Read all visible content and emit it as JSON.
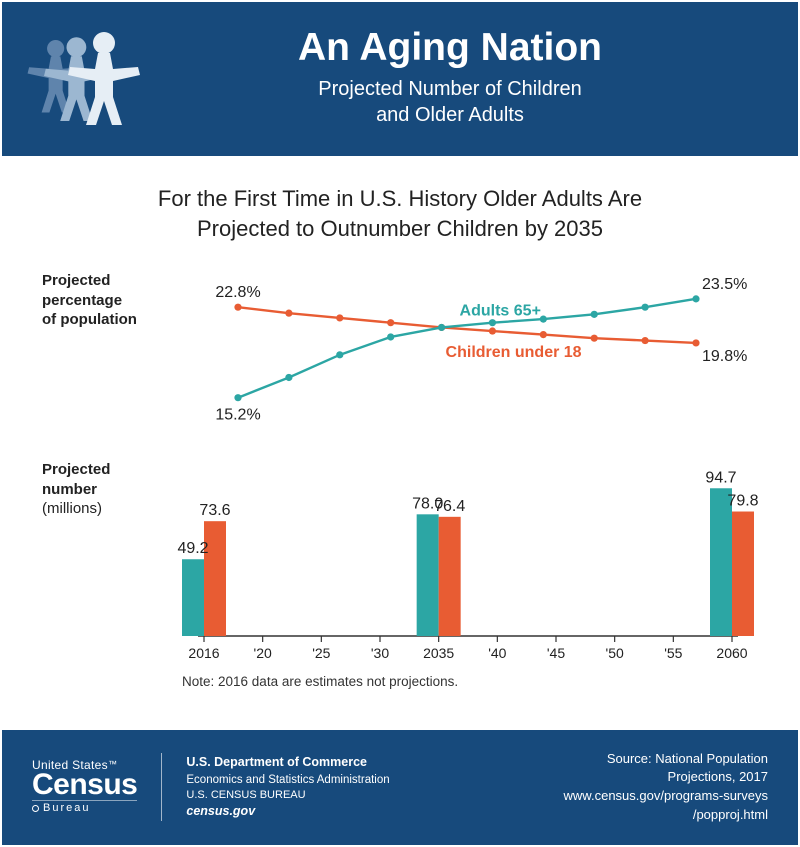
{
  "header": {
    "title": "An Aging Nation",
    "subtitle": "Projected Number of Children\nand Older Adults",
    "bg_color": "#174a7c",
    "icon_colors": {
      "front": "#e6eef5",
      "mid": "#9cb7d1",
      "back": "#5f84ac"
    }
  },
  "content": {
    "headline": "For the First Time in U.S. History Older Adults Are\nProjected to Outnumber Children by 2035",
    "bg_color": "#ffffff",
    "line_chart": {
      "type": "line",
      "side_label_line1": "Projected",
      "side_label_line2": "percentage",
      "side_label_line3": "of population",
      "series": {
        "adults": {
          "label": "Adults 65+",
          "color": "#2ca6a4",
          "values": [
            15.2,
            16.9,
            18.8,
            20.3,
            21.1,
            21.5,
            21.8,
            22.2,
            22.8,
            23.5
          ],
          "start_label": "15.2%",
          "end_label": "23.5%"
        },
        "children": {
          "label": "Children under 18",
          "color": "#e85c33",
          "values": [
            22.8,
            22.3,
            21.9,
            21.5,
            21.1,
            20.8,
            20.5,
            20.2,
            20.0,
            19.8
          ],
          "start_label": "22.8%",
          "end_label": "19.8%"
        }
      },
      "x_count": 10,
      "ylim": [
        14,
        25
      ],
      "marker_radius": 3.6,
      "line_width": 2.4,
      "label_fontsize": 16,
      "value_fontsize": 16
    },
    "bar_chart": {
      "type": "bar",
      "side_label_line1": "Projected",
      "side_label_line2": "number",
      "side_label_line3": "(millions)",
      "x_ticks": [
        "2016",
        "'20",
        "'25",
        "'30",
        "2035",
        "'40",
        "'45",
        "'50",
        "'55",
        "2060"
      ],
      "groups": [
        {
          "x_index": 0,
          "adults": 49.2,
          "children": 73.6
        },
        {
          "x_index": 4,
          "adults": 78.0,
          "children": 76.4
        },
        {
          "x_index": 9,
          "adults": 94.7,
          "children": 79.8
        }
      ],
      "ylim": [
        0,
        100
      ],
      "colors": {
        "adults": "#2ca6a4",
        "children": "#e85c33"
      },
      "axis_color": "#333333",
      "tick_fontsize": 14,
      "value_fontsize": 16,
      "bar_pair_width": 44
    },
    "note": "Note: 2016 data are estimates not projections."
  },
  "footer": {
    "bg_color": "#174a7c",
    "logo": {
      "top": "United States",
      "trademark": "™",
      "main": "Census",
      "bottom": "Bureau"
    },
    "dept": {
      "line1": "U.S. Department of Commerce",
      "line2": "Economics and Statistics Administration",
      "line3": "U.S. CENSUS BUREAU",
      "line4": "census.gov"
    },
    "source": {
      "line1": "Source: National Population",
      "line2": "Projections, 2017",
      "line3": "www.census.gov/programs-surveys",
      "line4": "/popproj.html"
    }
  }
}
